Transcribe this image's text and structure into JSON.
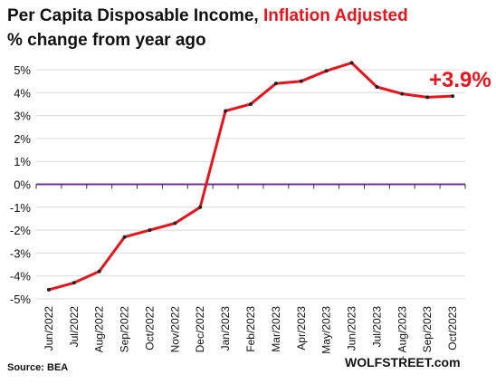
{
  "title": {
    "part1": "Per Capita Disposable  Income, ",
    "part2": "Inflation Adjusted",
    "line2": "% change from year ago"
  },
  "source": "Source: BEA",
  "brand": "WOLFSTREET.com",
  "callout": "+3.9%",
  "colors": {
    "line": "#e8141b",
    "zero_line": "#7030a0",
    "grid": "#d9d9d9",
    "callout": "#e8141b"
  },
  "chart_data": {
    "type": "line",
    "title": "Per Capita Disposable  Income, Inflation Adjusted % change from year ago",
    "xlabel": "",
    "ylabel": "",
    "categories": [
      "Jun/2022",
      "Jul/2022",
      "Aug/2022",
      "Sep/2022",
      "Oct/2022",
      "Nov/2022",
      "Dec/2022",
      "Jan/2023",
      "Feb/2023",
      "Mar/2023",
      "Apr/2023",
      "May/2023",
      "Jun/2023",
      "Jul/2023",
      "Aug/2023",
      "Sep/2023",
      "Oct/2023"
    ],
    "tick_labels": [
      "Jun/2022",
      "Jul/2022",
      "Aug/2022",
      "Sep/2022",
      "Oct/2022",
      "Nov/2022",
      "Dec/2022",
      "Jan/2023",
      "Feb/2023",
      "Mar/2023",
      "Apr/2023",
      "May/2023",
      "Jun/2023",
      "Jul/2023",
      "· Aug/2023",
      "Sep/2023",
      "Oct/2023"
    ],
    "series": [
      {
        "values": [
          -4.6,
          -4.3,
          -3.8,
          -2.3,
          -2.0,
          -1.7,
          -1.0,
          3.2,
          3.5,
          4.4,
          4.5,
          4.95,
          5.3,
          4.25,
          3.95,
          3.8,
          3.85
        ]
      }
    ],
    "ylim": [
      -5,
      5
    ],
    "yticks": [
      -5,
      -4,
      -3,
      -2,
      -1,
      0,
      1,
      2,
      3,
      4,
      5
    ],
    "ytick_labels": [
      "-5%",
      "-4%",
      "-3%",
      "-2%",
      "-1%",
      "0%",
      "1%",
      "2%",
      "3%",
      "4%",
      "5%"
    ],
    "grid": true,
    "legend": "none"
  }
}
